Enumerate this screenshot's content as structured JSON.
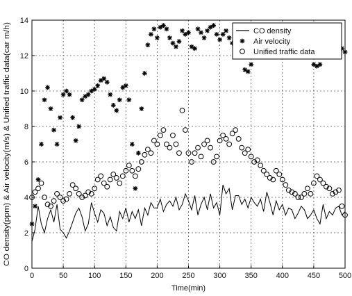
{
  "chart_data": {
    "type": "line",
    "title": "",
    "xlabel": "Time(min)",
    "ylabel": "CO density(ppm) & Air velocity(m/s) & Unified traffic data(car m/h)",
    "xlim": [
      0,
      500
    ],
    "ylim": [
      0,
      14
    ],
    "xticks": [
      "0",
      "50",
      "100",
      "150",
      "200",
      "250",
      "300",
      "350",
      "400",
      "450",
      "500"
    ],
    "yticks": [
      "0",
      "2",
      "4",
      "6",
      "8",
      "10",
      "12",
      "14"
    ],
    "grid": true,
    "legend_position": "top-right",
    "series": [
      {
        "name": "CO density",
        "marker": "line",
        "color": "#000000",
        "x": [
          0,
          5,
          10,
          15,
          20,
          25,
          30,
          35,
          40,
          45,
          50,
          55,
          60,
          65,
          70,
          75,
          80,
          85,
          90,
          95,
          100,
          105,
          110,
          115,
          120,
          125,
          130,
          135,
          140,
          145,
          150,
          155,
          160,
          165,
          170,
          175,
          180,
          185,
          190,
          195,
          200,
          205,
          210,
          215,
          220,
          225,
          230,
          235,
          240,
          245,
          250,
          255,
          260,
          265,
          270,
          275,
          280,
          285,
          290,
          295,
          300,
          305,
          310,
          315,
          320,
          325,
          330,
          335,
          340,
          345,
          350,
          355,
          360,
          365,
          370,
          375,
          380,
          385,
          390,
          395,
          400,
          405,
          410,
          415,
          420,
          425,
          430,
          435,
          440,
          445,
          450,
          455,
          460,
          465,
          470,
          475,
          480,
          485,
          490,
          495,
          500
        ],
        "y": [
          1.5,
          2.2,
          3.5,
          2.5,
          2.0,
          2.8,
          3.3,
          2.6,
          3.6,
          2.2,
          2.0,
          1.7,
          2.1,
          2.6,
          3.1,
          3.4,
          2.9,
          2.1,
          2.5,
          3.7,
          3.1,
          2.6,
          3.3,
          3.1,
          2.4,
          2.9,
          2.3,
          2.1,
          3.2,
          2.8,
          3.4,
          2.6,
          3.2,
          2.8,
          3.3,
          2.4,
          3.4,
          3.0,
          3.7,
          3.4,
          3.4,
          3.9,
          3.2,
          3.6,
          3.8,
          3.5,
          4.0,
          3.3,
          3.6,
          4.2,
          3.8,
          3.3,
          4.1,
          3.0,
          3.6,
          4.0,
          3.3,
          4.2,
          3.4,
          3.7,
          3.0,
          4.7,
          4.2,
          4.5,
          3.3,
          4.1,
          4.1,
          3.6,
          3.9,
          3.4,
          4.0,
          3.7,
          3.5,
          3.9,
          3.2,
          4.3,
          3.7,
          3.0,
          3.8,
          3.3,
          3.6,
          3.0,
          3.4,
          3.3,
          2.8,
          3.1,
          3.5,
          3.3,
          2.8,
          3.0,
          3.3,
          2.8,
          2.5,
          3.6,
          2.8,
          3.2,
          3.0,
          3.4,
          3.5,
          3.0,
          3.2
        ]
      },
      {
        "name": "Air velocity",
        "marker": "star",
        "color": "#000000",
        "x": [
          0,
          5,
          10,
          15,
          20,
          25,
          30,
          35,
          40,
          45,
          50,
          55,
          60,
          65,
          70,
          75,
          80,
          85,
          90,
          95,
          100,
          105,
          110,
          115,
          120,
          125,
          130,
          135,
          140,
          145,
          150,
          155,
          160,
          165,
          170,
          175,
          180,
          185,
          190,
          195,
          200,
          205,
          210,
          215,
          220,
          225,
          230,
          235,
          240,
          245,
          250,
          255,
          260,
          265,
          270,
          275,
          280,
          285,
          290,
          295,
          300,
          305,
          310,
          315,
          320,
          325,
          330,
          335,
          340,
          345,
          350,
          355,
          360,
          365,
          370,
          375,
          380,
          385,
          390,
          395,
          400,
          405,
          410,
          415,
          420,
          425,
          430,
          435,
          440,
          445,
          450,
          455,
          460,
          465,
          470,
          475,
          480,
          485,
          490,
          495,
          500
        ],
        "y": [
          2.5,
          3.5,
          5.0,
          7.0,
          9.5,
          10.2,
          9.0,
          7.8,
          7.0,
          8.5,
          9.8,
          10.0,
          9.8,
          8.5,
          7.2,
          8.0,
          9.5,
          9.7,
          9.8,
          10.0,
          10.1,
          10.3,
          10.6,
          10.7,
          10.5,
          9.8,
          9.2,
          8.9,
          9.5,
          10.2,
          10.3,
          9.5,
          7.0,
          4.5,
          6.5,
          9.0,
          11.0,
          12.6,
          13.2,
          13.5,
          13.0,
          13.6,
          13.7,
          13.5,
          13.0,
          12.7,
          12.5,
          12.8,
          13.4,
          13.2,
          13.3,
          12.5,
          12.4,
          13.5,
          13.3,
          13.0,
          13.4,
          13.6,
          13.7,
          13.2,
          12.9,
          13.2,
          13.4,
          13.0,
          12.7,
          12.5,
          12.8,
          13.5,
          11.2,
          11.1,
          11.5,
          12.6,
          13.2,
          12.8,
          13.0,
          12.5,
          12.8,
          13.3,
          13.1,
          13.2,
          13.0,
          12.6,
          12.4,
          12.5,
          12.8,
          13.0,
          12.6,
          12.3,
          12.5,
          12.3,
          11.5,
          11.4,
          11.5,
          12.0,
          12.3,
          12.1,
          12.5,
          12.3,
          12.2,
          12.4,
          12.2
        ]
      },
      {
        "name": "Unified traffic data",
        "marker": "circle",
        "color": "#000000",
        "x": [
          0,
          5,
          10,
          15,
          20,
          25,
          30,
          35,
          40,
          45,
          50,
          55,
          60,
          65,
          70,
          75,
          80,
          85,
          90,
          95,
          100,
          105,
          110,
          115,
          120,
          125,
          130,
          135,
          140,
          145,
          150,
          155,
          160,
          165,
          170,
          175,
          180,
          185,
          190,
          195,
          200,
          205,
          210,
          215,
          220,
          225,
          230,
          235,
          240,
          245,
          250,
          255,
          260,
          265,
          270,
          275,
          280,
          285,
          290,
          295,
          300,
          305,
          310,
          315,
          320,
          325,
          330,
          335,
          340,
          345,
          350,
          355,
          360,
          365,
          370,
          375,
          380,
          385,
          390,
          395,
          400,
          405,
          410,
          415,
          420,
          425,
          430,
          435,
          440,
          445,
          450,
          455,
          460,
          465,
          470,
          475,
          480,
          485,
          490,
          495,
          500
        ],
        "y": [
          4.0,
          4.3,
          4.5,
          4.8,
          4.0,
          3.6,
          3.5,
          3.8,
          4.2,
          4.0,
          3.8,
          3.9,
          4.2,
          4.7,
          4.5,
          4.2,
          4.0,
          4.1,
          4.3,
          4.2,
          4.5,
          5.0,
          5.2,
          4.8,
          4.6,
          5.0,
          5.3,
          5.1,
          4.8,
          5.2,
          5.5,
          5.8,
          5.5,
          5.2,
          5.6,
          6.0,
          6.4,
          6.7,
          6.5,
          7.2,
          7.0,
          7.5,
          7.8,
          7.0,
          6.8,
          7.5,
          7.0,
          6.5,
          8.9,
          7.8,
          6.5,
          6.0,
          6.5,
          6.8,
          6.3,
          7.0,
          7.2,
          6.8,
          6.0,
          6.3,
          7.2,
          7.5,
          7.3,
          7.0,
          7.6,
          7.8,
          7.3,
          6.8,
          6.5,
          6.7,
          6.3,
          6.0,
          6.1,
          5.8,
          5.5,
          5.3,
          5.1,
          5.0,
          5.5,
          5.3,
          5.0,
          4.7,
          4.4,
          4.3,
          4.2,
          4.0,
          4.0,
          4.2,
          4.5,
          4.2,
          4.8,
          5.2,
          5.0,
          4.8,
          4.6,
          4.5,
          4.2,
          4.3,
          4.4,
          3.5,
          3.0
        ]
      }
    ]
  }
}
